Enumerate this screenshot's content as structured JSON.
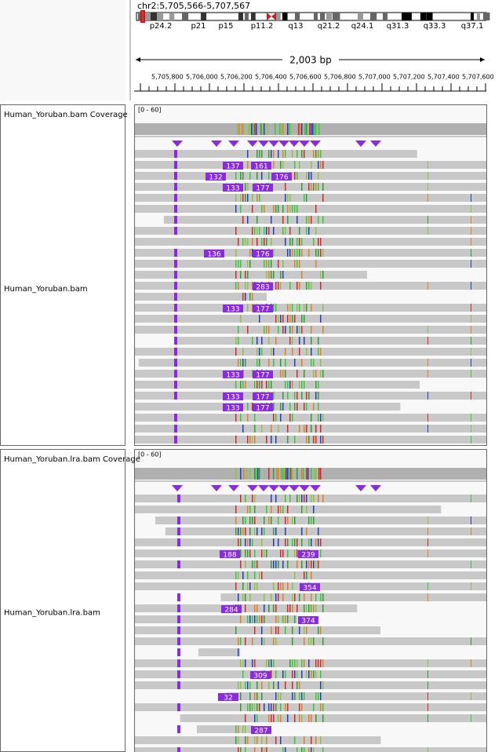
{
  "locus": "chr2:5,705,566-5,707,567",
  "cytobands": [
    "p24.2",
    "p21",
    "p15",
    "p11.2",
    "q13",
    "q21.2",
    "q24.1",
    "q31.3",
    "q33.3",
    "q37.1"
  ],
  "span": "2,003 bp",
  "ruler_labels": [
    "5,705,800",
    "5,706,000",
    "5,706,200",
    "5,706,400",
    "5,706,600",
    "5,706,800",
    "5,707,000",
    "5,707,200",
    "5,707,400",
    "5,707,600"
  ],
  "tracks": [
    {
      "coverage_name": "Human_Yoruban.bam Coverage",
      "range": "[0 - 60]",
      "name": "Human_Yoruban.bam",
      "insertions": [
        "137",
        "161",
        "132",
        "176",
        "133",
        "177",
        "136",
        "176",
        "283",
        "133",
        "177",
        "133",
        "177",
        "133",
        "177",
        "133",
        "177"
      ]
    },
    {
      "coverage_name": "Human_Yoruban.lra.bam Coverage",
      "range": "[0 - 60]",
      "name": "Human_Yoruban.lra.bam",
      "insertions": [
        "188",
        "239",
        "354",
        "284",
        "374",
        "309",
        "32",
        "287"
      ]
    }
  ]
}
